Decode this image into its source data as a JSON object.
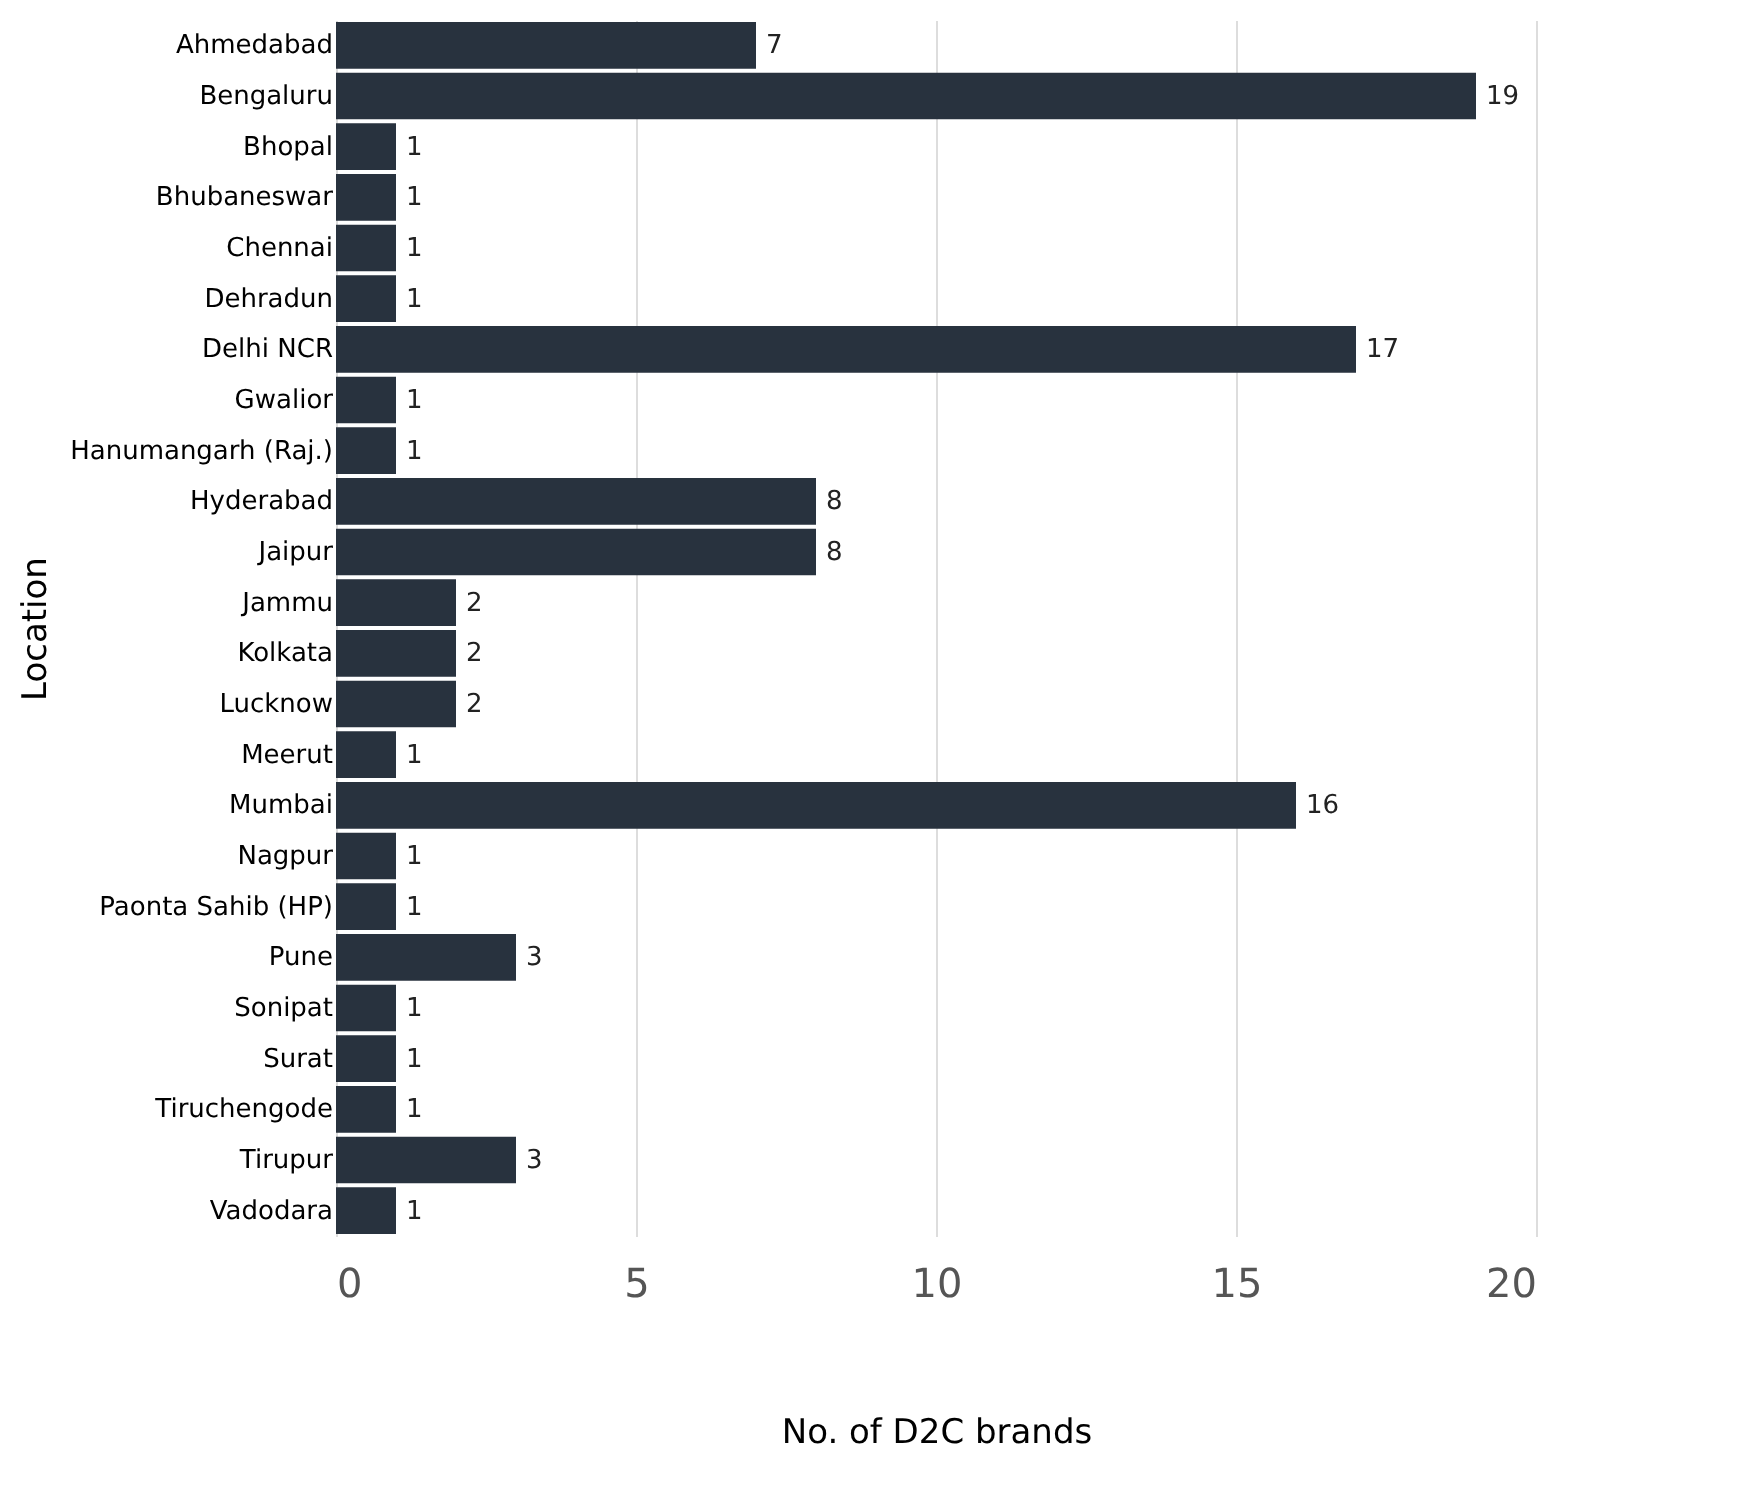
{
  "chart_data": {
    "type": "bar",
    "orientation": "horizontal",
    "xlabel": "No. of D2C brands",
    "ylabel": "Location",
    "categories": [
      "Ahmedabad",
      "Bengaluru",
      "Bhopal",
      "Bhubaneswar",
      "Chennai",
      "Dehradun",
      "Delhi NCR",
      "Gwalior",
      "Hanumangarh (Raj.)",
      "Hyderabad",
      "Jaipur",
      "Jammu",
      "Kolkata",
      "Lucknow",
      "Meerut",
      "Mumbai",
      "Nagpur",
      "Paonta Sahib (HP)",
      "Pune",
      "Sonipat",
      "Surat",
      "Tiruchengode",
      "Tirupur",
      "Vadodara"
    ],
    "values": [
      7,
      19,
      1,
      1,
      1,
      1,
      17,
      1,
      1,
      8,
      8,
      2,
      2,
      2,
      1,
      16,
      1,
      1,
      3,
      1,
      1,
      1,
      3,
      1
    ],
    "color": "#28323e",
    "xlim": [
      0,
      20
    ],
    "xticks": [
      0,
      5,
      10,
      15,
      20
    ],
    "grid": "x",
    "data_labels": true
  }
}
